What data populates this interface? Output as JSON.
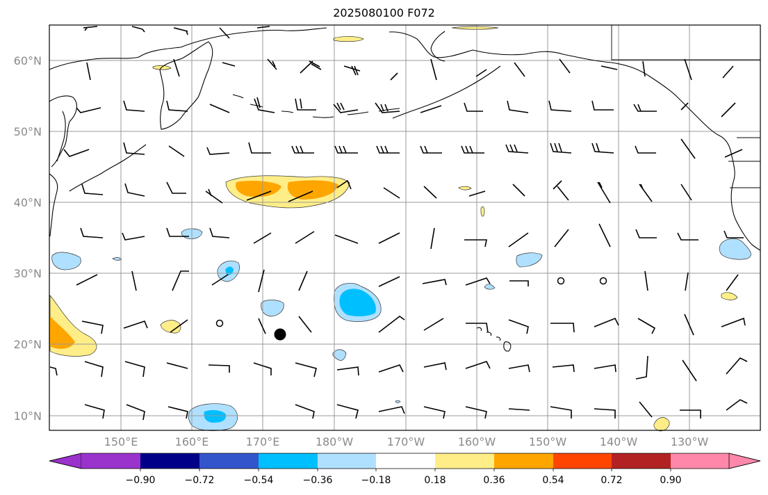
{
  "title": "2025080100 F072",
  "map": {
    "lat_labels": [
      "60°N",
      "50°N",
      "40°N",
      "30°N",
      "20°N",
      "10°N"
    ],
    "lon_labels": [
      "150°E",
      "160°E",
      "170°E",
      "180°W",
      "170°W",
      "160°W",
      "150°W",
      "140°W",
      "130°W"
    ],
    "grid_color": "#999999"
  },
  "colorbar": {
    "ticks": [
      "−0.90",
      "−0.72",
      "−0.54",
      "−0.36",
      "−0.18",
      "0.18",
      "0.36",
      "0.54",
      "0.72",
      "0.90"
    ],
    "colors": [
      "#9933cc",
      "#000088",
      "#3355cc",
      "#00bfff",
      "#b0e0ff",
      "#ffffff",
      "#ffee88",
      "#ffa500",
      "#ff4500",
      "#b22222",
      "#ff88aa"
    ]
  }
}
